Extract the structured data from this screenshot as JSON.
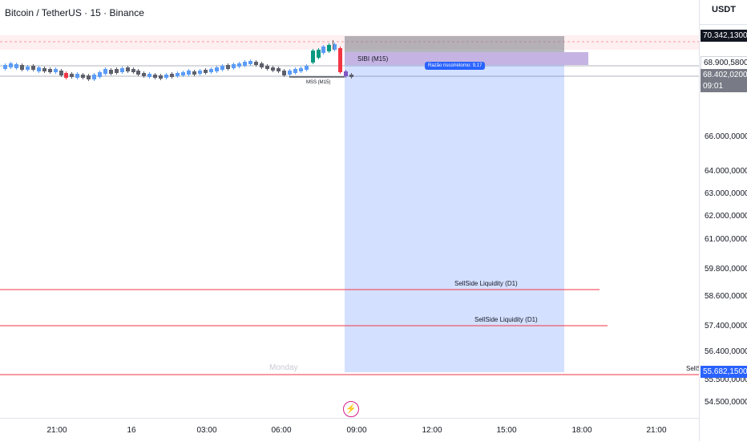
{
  "symbol": {
    "title": "Bitcoin / TetherUS · 15 · Binance"
  },
  "price_axis": {
    "currency": "USDT",
    "ticks": [
      "66.000,0000",
      "64.000,0000",
      "63.000,0000",
      "62.000,0000",
      "61.000,0000",
      "59.800,0000",
      "58.600,0000",
      "57.400,0000",
      "56.400,0000",
      "55.500,0000",
      "54.500,0000"
    ],
    "tags": {
      "high": "70.342,1300",
      "mid": "68.900,5800",
      "current": "68.402,0200",
      "countdown": "09:01",
      "liquidity": "55.682,1500"
    }
  },
  "time_axis": {
    "labels": [
      "21:00",
      "16",
      "03:00",
      "06:00",
      "09:00",
      "12:00",
      "15:00",
      "18:00",
      "21:00"
    ]
  },
  "annotations": {
    "sibi": "SIBI (M15)",
    "mss": "MSS (M15)",
    "risk_reward": "Razão risco/retorno: 9,17",
    "sellside_1": "SellSide Liquidity (D1)",
    "sellside_2": "SellSide Liquidity (D1)",
    "sellside_truncated": "SellS",
    "day_watermark": "Monday"
  },
  "icons": {
    "flash": "flash-icon"
  },
  "colors": {
    "bull": "#089981",
    "bear": "#f23645",
    "neutral_candle": "#5b9cf6",
    "dark_candle": "#5d606b",
    "position_fill": "#2962ff",
    "risk_fill": "#787b86",
    "sibi_fill": "#7e57c2",
    "liquidity_line": "#f23645"
  }
}
